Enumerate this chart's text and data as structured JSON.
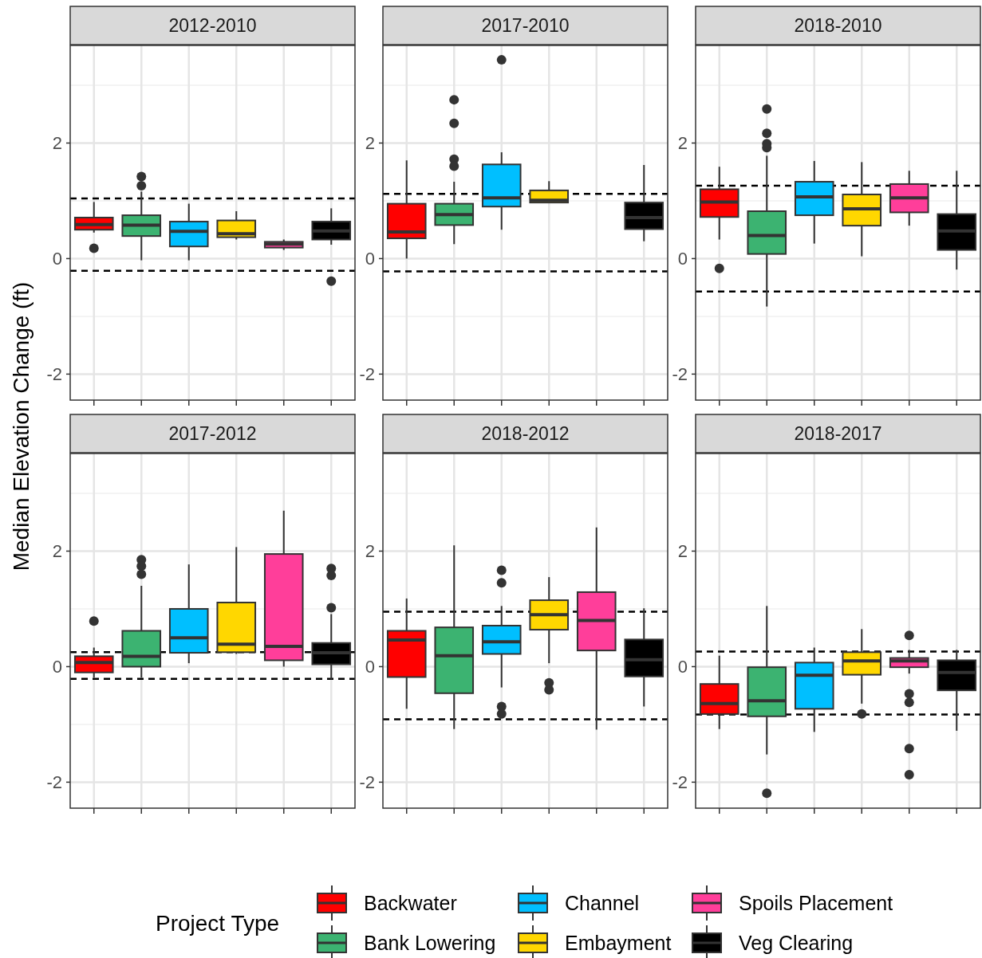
{
  "chart_data": [
    {
      "type": "box",
      "title": "2012-2010",
      "ylabel": "Median Elevation Change (ft)",
      "categories": [
        null,
        null,
        null,
        null,
        null,
        null
      ],
      "ylim": [
        -2.45,
        3.69
      ],
      "yticks": [
        -2,
        0,
        2
      ],
      "grid": true,
      "tick_labels": "y",
      "legend": "bottom",
      "legend_title": "Project Type",
      "ref_lines": [
        {
          "axis": "y",
          "value": 1.04,
          "color": "#000000",
          "line_style": "dashed"
        },
        {
          "axis": "y",
          "value": -0.21,
          "color": "#000000",
          "line_style": "dashed"
        }
      ],
      "series": [
        {
          "name": "Backwater",
          "color": "#ff0000",
          "boxes": [
            {
              "low": 0.45,
              "q1": 0.5,
              "median": 0.59,
              "q3": 0.71,
              "high": 0.98,
              "outliers": [
                0.18
              ]
            },
            null,
            null,
            null,
            null,
            null
          ]
        },
        {
          "name": "Bank Lowering",
          "color": "#3cb371",
          "boxes": [
            null,
            {
              "low": -0.03,
              "q1": 0.39,
              "median": 0.58,
              "q3": 0.75,
              "high": 1.16,
              "outliers": [
                1.42,
                1.26
              ]
            },
            null,
            null,
            null,
            null
          ]
        },
        {
          "name": "Channel",
          "color": "#00bfff",
          "boxes": [
            null,
            null,
            {
              "low": -0.03,
              "q1": 0.21,
              "median": 0.47,
              "q3": 0.64,
              "high": 0.95
            },
            null,
            null,
            null
          ]
        },
        {
          "name": "Embayment",
          "color": "#ffd700",
          "boxes": [
            null,
            null,
            null,
            {
              "low": 0.33,
              "q1": 0.37,
              "median": 0.43,
              "q3": 0.66,
              "high": 0.82
            },
            null,
            null
          ]
        },
        {
          "name": "Spoils Placement",
          "color": "#ff3e9a",
          "boxes": [
            null,
            null,
            null,
            null,
            {
              "low": 0.15,
              "q1": 0.19,
              "median": 0.25,
              "q3": 0.29,
              "high": 0.33
            },
            null
          ]
        },
        {
          "name": "Veg Clearing",
          "color": "#000000",
          "boxes": [
            null,
            null,
            null,
            null,
            null,
            {
              "low": 0.24,
              "q1": 0.33,
              "median": 0.48,
              "q3": 0.64,
              "high": 0.87,
              "outliers": [
                -0.39
              ]
            }
          ]
        }
      ]
    },
    {
      "type": "box",
      "title": "2017-2010",
      "categories": [
        null,
        null,
        null,
        null,
        null,
        null
      ],
      "ylim": [
        -2.45,
        3.69
      ],
      "yticks": [
        -2,
        0,
        2
      ],
      "grid": true,
      "tick_labels": "y",
      "ref_lines": [
        {
          "axis": "y",
          "value": 1.12,
          "color": "#000000",
          "line_style": "dashed"
        },
        {
          "axis": "y",
          "value": -0.22,
          "color": "#000000",
          "line_style": "dashed"
        }
      ],
      "series": [
        {
          "color": "#ff0000",
          "boxes": [
            {
              "low": 0,
              "q1": 0.35,
              "median": 0.46,
              "q3": 0.95,
              "high": 1.7
            },
            null,
            null,
            null,
            null,
            null
          ]
        },
        {
          "color": "#3cb371",
          "boxes": [
            null,
            {
              "low": 0.25,
              "q1": 0.58,
              "median": 0.76,
              "q3": 0.95,
              "high": 1.33,
              "outliers": [
                2.75,
                2.34,
                1.72,
                1.6
              ]
            },
            null,
            null,
            null,
            null
          ]
        },
        {
          "color": "#00bfff",
          "boxes": [
            null,
            null,
            {
              "low": 0.5,
              "q1": 0.9,
              "median": 1.05,
              "q3": 1.63,
              "high": 1.84,
              "outliers": [
                3.44
              ]
            },
            null,
            null,
            null
          ]
        },
        {
          "color": "#ffd700",
          "boxes": [
            null,
            null,
            null,
            {
              "low": 0.97,
              "q1": 0.97,
              "median": 1.01,
              "q3": 1.18,
              "high": 1.34
            },
            null,
            null
          ]
        },
        {
          "color": "#000000",
          "boxes": [
            null,
            null,
            null,
            null,
            null,
            {
              "low": 0.3,
              "q1": 0.51,
              "median": 0.71,
              "q3": 0.97,
              "high": 1.62
            }
          ]
        }
      ]
    },
    {
      "type": "box",
      "title": "2018-2010",
      "categories": [
        null,
        null,
        null,
        null,
        null,
        null
      ],
      "ylim": [
        -2.45,
        3.69
      ],
      "yticks": [
        -2,
        0,
        2
      ],
      "grid": true,
      "tick_labels": "y",
      "ref_lines": [
        {
          "axis": "y",
          "value": 1.26,
          "color": "#000000",
          "line_style": "dashed"
        },
        {
          "axis": "y",
          "value": -0.57,
          "color": "#000000",
          "line_style": "dashed"
        }
      ],
      "series": [
        {
          "color": "#ff0000",
          "boxes": [
            {
              "low": 0.33,
              "q1": 0.72,
              "median": 0.98,
              "q3": 1.2,
              "high": 1.59,
              "outliers": [
                -0.17
              ]
            },
            null,
            null,
            null,
            null,
            null
          ]
        },
        {
          "color": "#3cb371",
          "boxes": [
            null,
            {
              "low": -0.83,
              "q1": 0.08,
              "median": 0.4,
              "q3": 0.82,
              "high": 1.78,
              "outliers": [
                2.59,
                2.17,
                1.99,
                1.92
              ]
            },
            null,
            null,
            null,
            null
          ]
        },
        {
          "color": "#00bfff",
          "boxes": [
            null,
            null,
            {
              "low": 0.26,
              "q1": 0.75,
              "median": 1.07,
              "q3": 1.33,
              "high": 1.69
            },
            null,
            null,
            null
          ]
        },
        {
          "color": "#ffd700",
          "boxes": [
            null,
            null,
            null,
            {
              "low": 0.04,
              "q1": 0.57,
              "median": 0.86,
              "q3": 1.11,
              "high": 1.67
            },
            null,
            null
          ]
        },
        {
          "color": "#ff3e9a",
          "boxes": [
            null,
            null,
            null,
            null,
            {
              "low": 0.57,
              "q1": 0.8,
              "median": 1.05,
              "q3": 1.29,
              "high": 1.52
            },
            null
          ]
        },
        {
          "color": "#000000",
          "boxes": [
            null,
            null,
            null,
            null,
            null,
            {
              "low": -0.19,
              "q1": 0.15,
              "median": 0.48,
              "q3": 0.77,
              "high": 1.52
            }
          ]
        }
      ]
    },
    {
      "type": "box",
      "title": "2017-2012",
      "categories": [
        null,
        null,
        null,
        null,
        null,
        null
      ],
      "ylim": [
        -2.45,
        3.69
      ],
      "yticks": [
        -2,
        0,
        2
      ],
      "grid": true,
      "tick_labels": "y",
      "ref_lines": [
        {
          "axis": "y",
          "value": 0.25,
          "color": "#000000",
          "line_style": "dashed"
        },
        {
          "axis": "y",
          "value": -0.21,
          "color": "#000000",
          "line_style": "dashed"
        }
      ],
      "series": [
        {
          "color": "#ff0000",
          "boxes": [
            {
              "low": -0.19,
              "q1": -0.1,
              "median": 0.07,
              "q3": 0.18,
              "high": 0.33,
              "outliers": [
                0.79
              ]
            },
            null,
            null,
            null,
            null,
            null
          ]
        },
        {
          "color": "#3cb371",
          "boxes": [
            null,
            {
              "low": -0.19,
              "q1": 0,
              "median": 0.18,
              "q3": 0.62,
              "high": 1.4,
              "outliers": [
                1.85,
                1.74,
                1.6
              ]
            },
            null,
            null,
            null,
            null
          ]
        },
        {
          "color": "#00bfff",
          "boxes": [
            null,
            null,
            {
              "low": 0.06,
              "q1": 0.24,
              "median": 0.5,
              "q3": 1,
              "high": 1.77
            },
            null,
            null,
            null
          ]
        },
        {
          "color": "#ffd700",
          "boxes": [
            null,
            null,
            null,
            {
              "low": 0.22,
              "q1": 0.25,
              "median": 0.39,
              "q3": 1.11,
              "high": 2.07
            },
            null,
            null
          ]
        },
        {
          "color": "#ff3e9a",
          "boxes": [
            null,
            null,
            null,
            null,
            {
              "low": 0,
              "q1": 0.11,
              "median": 0.35,
              "q3": 1.95,
              "high": 2.7
            },
            null
          ]
        },
        {
          "color": "#000000",
          "boxes": [
            null,
            null,
            null,
            null,
            null,
            {
              "low": -0.22,
              "q1": 0.04,
              "median": 0.24,
              "q3": 0.41,
              "high": 0.91,
              "outliers": [
                1.7,
                1.58,
                1.02
              ]
            }
          ]
        }
      ]
    },
    {
      "type": "box",
      "title": "2018-2012",
      "categories": [
        null,
        null,
        null,
        null,
        null,
        null
      ],
      "ylim": [
        -2.45,
        3.69
      ],
      "yticks": [
        -2,
        0,
        2
      ],
      "grid": true,
      "tick_labels": "y",
      "ref_lines": [
        {
          "axis": "y",
          "value": 0.95,
          "color": "#000000",
          "line_style": "dashed"
        },
        {
          "axis": "y",
          "value": -0.91,
          "color": "#000000",
          "line_style": "dashed"
        }
      ],
      "series": [
        {
          "color": "#ff0000",
          "boxes": [
            {
              "low": -0.73,
              "q1": -0.18,
              "median": 0.46,
              "q3": 0.62,
              "high": 1.18
            },
            null,
            null,
            null,
            null,
            null
          ]
        },
        {
          "color": "#3cb371",
          "boxes": [
            null,
            {
              "low": -1.08,
              "q1": -0.46,
              "median": 0.19,
              "q3": 0.68,
              "high": 2.1
            },
            null,
            null,
            null,
            null
          ]
        },
        {
          "color": "#00bfff",
          "boxes": [
            null,
            null,
            {
              "low": -0.36,
              "q1": 0.22,
              "median": 0.43,
              "q3": 0.71,
              "high": 1.05,
              "outliers": [
                1.67,
                1.45,
                -0.69,
                -0.82
              ]
            },
            null,
            null,
            null
          ]
        },
        {
          "color": "#ffd700",
          "boxes": [
            null,
            null,
            null,
            {
              "low": 0.06,
              "q1": 0.64,
              "median": 0.9,
              "q3": 1.15,
              "high": 1.55,
              "outliers": [
                -0.28,
                -0.4
              ]
            },
            null,
            null
          ]
        },
        {
          "color": "#ff3e9a",
          "boxes": [
            null,
            null,
            null,
            null,
            {
              "low": -1.09,
              "q1": 0.28,
              "median": 0.8,
              "q3": 1.29,
              "high": 2.41
            },
            null
          ]
        },
        {
          "color": "#000000",
          "boxes": [
            null,
            null,
            null,
            null,
            null,
            {
              "low": -0.69,
              "q1": -0.17,
              "median": 0.12,
              "q3": 0.47,
              "high": 1.01
            }
          ]
        }
      ]
    },
    {
      "type": "box",
      "title": "2018-2017",
      "categories": [
        null,
        null,
        null,
        null,
        null,
        null
      ],
      "ylim": [
        -2.45,
        3.69
      ],
      "yticks": [
        -2,
        0,
        2
      ],
      "grid": true,
      "tick_labels": "y",
      "ref_lines": [
        {
          "axis": "y",
          "value": 0.26,
          "color": "#000000",
          "line_style": "dashed"
        },
        {
          "axis": "y",
          "value": -0.83,
          "color": "#000000",
          "line_style": "dashed"
        }
      ],
      "series": [
        {
          "color": "#ff0000",
          "boxes": [
            {
              "low": -1.08,
              "q1": -0.82,
              "median": -0.64,
              "q3": -0.3,
              "high": 0.19
            },
            null,
            null,
            null,
            null,
            null
          ]
        },
        {
          "color": "#3cb371",
          "boxes": [
            null,
            {
              "low": -1.52,
              "q1": -0.86,
              "median": -0.59,
              "q3": -0.01,
              "high": 1.05,
              "outliers": [
                -2.19
              ]
            },
            null,
            null,
            null,
            null
          ]
        },
        {
          "color": "#00bfff",
          "boxes": [
            null,
            null,
            {
              "low": -1.13,
              "q1": -0.73,
              "median": -0.15,
              "q3": 0.07,
              "high": 0.33
            },
            null,
            null,
            null
          ]
        },
        {
          "color": "#ffd700",
          "boxes": [
            null,
            null,
            null,
            {
              "low": -0.64,
              "q1": -0.14,
              "median": 0.1,
              "q3": 0.25,
              "high": 0.65,
              "outliers": [
                -0.82
              ]
            },
            null,
            null
          ]
        },
        {
          "color": "#ff3e9a",
          "boxes": [
            null,
            null,
            null,
            null,
            {
              "low": -0.12,
              "q1": -0.01,
              "median": 0.1,
              "q3": 0.15,
              "high": 0.29,
              "outliers": [
                0.54,
                -0.47,
                -0.62,
                -1.42,
                -1.87
              ]
            },
            null
          ]
        },
        {
          "color": "#000000",
          "boxes": [
            null,
            null,
            null,
            null,
            null,
            {
              "low": -1.11,
              "q1": -0.41,
              "median": -0.1,
              "q3": 0.11,
              "high": 0.29
            }
          ]
        }
      ]
    }
  ]
}
